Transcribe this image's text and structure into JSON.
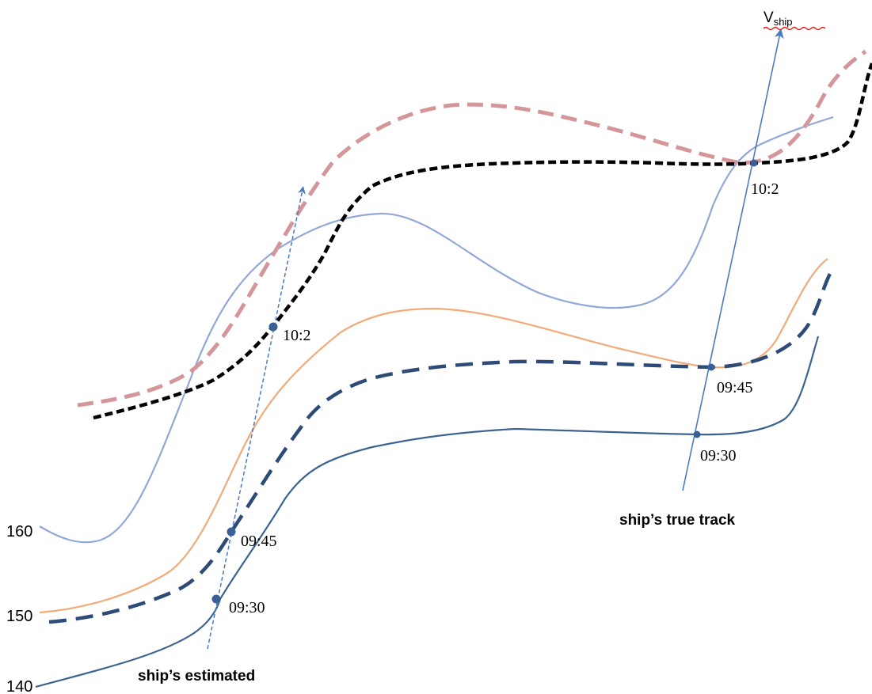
{
  "vship_label": {
    "main": "V",
    "subscript": "ship"
  },
  "level_labels": [
    "160",
    "150",
    "140"
  ],
  "time_labels": {
    "estimated_10_2": "10:2",
    "estimated_09_45": "09:45",
    "estimated_09_30": "09:30",
    "true_10_2": "10:2",
    "true_09_45": "09:45",
    "true_09_30": "09:30"
  },
  "track_labels": {
    "true_track": "ship’s true track",
    "estimated_track": "ship’s estimated"
  },
  "colors": {
    "light_blue": "#92a8d8",
    "pink_dashed": "#d5969a",
    "black_dashed": "#000000",
    "orange": "#f2ab78",
    "navy_dashed": "#2e4b78",
    "navy": "#3d6490",
    "track_arrow": "#4a7bbf",
    "point": "#3a5f94",
    "squiggle": "#e0201b"
  }
}
